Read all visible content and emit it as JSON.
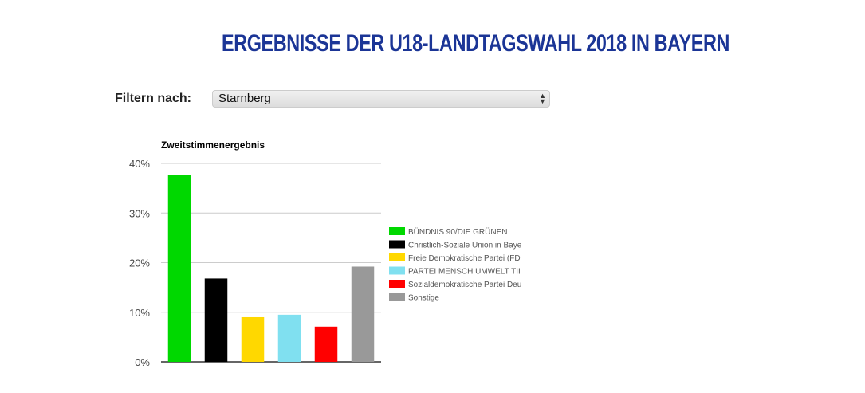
{
  "header": {
    "title": "ERGEBNISSE DER U18-LANDTAGSWAHL 2018 IN BAYERN",
    "title_color": "#1b3596"
  },
  "filter": {
    "label": "Filtern nach:",
    "selected": "Starnberg"
  },
  "chart_data": {
    "type": "bar",
    "title": "Zweitstimmenergebnis",
    "categories": [
      "BÜNDNIS 90/DIE GRÜNEN",
      "Christlich-Soziale Union in Baye",
      "Freie Demokratische Partei (FD",
      "PARTEI MENSCH UMWELT TII",
      "Sozialdemokratische Partei Deu",
      "Sonstige"
    ],
    "values": [
      37.6,
      16.8,
      9.0,
      9.5,
      7.1,
      19.2
    ],
    "colors": [
      "#00d800",
      "#000000",
      "#ffd800",
      "#80e0f0",
      "#ff0000",
      "#999999"
    ],
    "yticks": [
      "0%",
      "10%",
      "20%",
      "30%",
      "40%"
    ],
    "ylim": [
      0,
      40
    ],
    "grid": true,
    "legend": "right"
  }
}
